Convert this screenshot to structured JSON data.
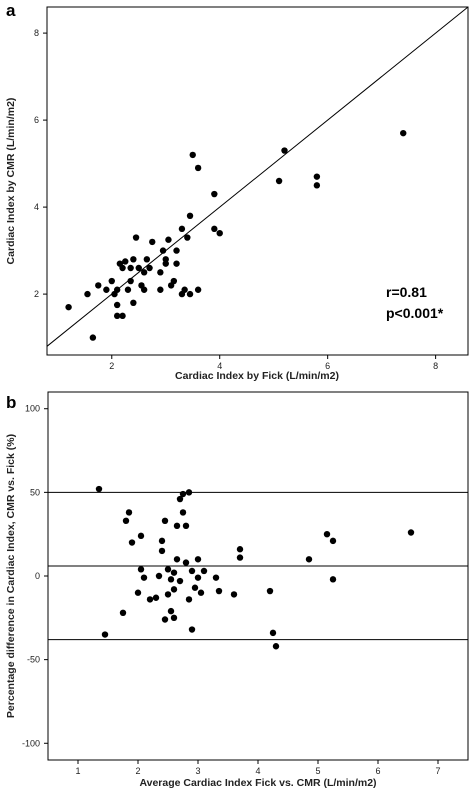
{
  "chart_data": [
    {
      "type": "scatter",
      "panel_label": "a",
      "xlabel": "Cardiac Index by Fick (L/min/m2)",
      "ylabel": "Cardiac Index by CMR (L/min/m2)",
      "xlim": [
        0.8,
        8.6
      ],
      "ylim": [
        0.6,
        8.6
      ],
      "xticks": [
        "2",
        "4",
        "6",
        "8"
      ],
      "yticks": [
        "2",
        "4",
        "6",
        "8"
      ],
      "annotations": [
        "r=0.81",
        "p<0.001*"
      ],
      "identity_line": true,
      "points": [
        {
          "x": 1.2,
          "y": 1.7
        },
        {
          "x": 1.55,
          "y": 2.0
        },
        {
          "x": 1.65,
          "y": 1.0
        },
        {
          "x": 1.75,
          "y": 2.2
        },
        {
          "x": 1.9,
          "y": 2.1
        },
        {
          "x": 2.0,
          "y": 2.3
        },
        {
          "x": 2.05,
          "y": 2.0
        },
        {
          "x": 2.1,
          "y": 1.5
        },
        {
          "x": 2.1,
          "y": 1.75
        },
        {
          "x": 2.1,
          "y": 2.1
        },
        {
          "x": 2.15,
          "y": 2.7
        },
        {
          "x": 2.2,
          "y": 1.5
        },
        {
          "x": 2.25,
          "y": 2.75
        },
        {
          "x": 2.2,
          "y": 2.6
        },
        {
          "x": 2.35,
          "y": 2.3
        },
        {
          "x": 2.3,
          "y": 2.1
        },
        {
          "x": 2.35,
          "y": 2.6
        },
        {
          "x": 2.4,
          "y": 2.8
        },
        {
          "x": 2.4,
          "y": 1.8
        },
        {
          "x": 2.45,
          "y": 3.3
        },
        {
          "x": 2.5,
          "y": 2.6
        },
        {
          "x": 2.55,
          "y": 2.2
        },
        {
          "x": 2.6,
          "y": 2.5
        },
        {
          "x": 2.6,
          "y": 2.1
        },
        {
          "x": 2.65,
          "y": 2.8
        },
        {
          "x": 2.7,
          "y": 2.6
        },
        {
          "x": 2.75,
          "y": 3.2
        },
        {
          "x": 2.9,
          "y": 2.5
        },
        {
          "x": 2.9,
          "y": 2.1
        },
        {
          "x": 2.95,
          "y": 3.0
        },
        {
          "x": 3.0,
          "y": 2.7
        },
        {
          "x": 3.0,
          "y": 2.8
        },
        {
          "x": 3.05,
          "y": 3.25
        },
        {
          "x": 3.1,
          "y": 2.2
        },
        {
          "x": 3.15,
          "y": 2.3
        },
        {
          "x": 3.2,
          "y": 2.7
        },
        {
          "x": 3.2,
          "y": 3.0
        },
        {
          "x": 3.3,
          "y": 3.5
        },
        {
          "x": 3.35,
          "y": 2.1
        },
        {
          "x": 3.4,
          "y": 3.3
        },
        {
          "x": 3.3,
          "y": 2.0
        },
        {
          "x": 3.45,
          "y": 2.0
        },
        {
          "x": 3.45,
          "y": 3.8
        },
        {
          "x": 3.5,
          "y": 5.2
        },
        {
          "x": 3.6,
          "y": 4.9
        },
        {
          "x": 3.6,
          "y": 2.1
        },
        {
          "x": 3.9,
          "y": 4.3
        },
        {
          "x": 3.9,
          "y": 3.5
        },
        {
          "x": 4.0,
          "y": 3.4
        },
        {
          "x": 5.1,
          "y": 4.6
        },
        {
          "x": 5.2,
          "y": 5.3
        },
        {
          "x": 5.8,
          "y": 4.7
        },
        {
          "x": 5.8,
          "y": 4.5
        },
        {
          "x": 7.4,
          "y": 5.7
        }
      ]
    },
    {
      "type": "scatter",
      "panel_label": "b",
      "xlabel": "Average Cardiac Index Fick vs. CMR (L/min/m2)",
      "ylabel": "Percentage difference in Cardiac Index, CMR vs. Fick (%)",
      "xlim": [
        0.5,
        7.5
      ],
      "ylim": [
        -110,
        110
      ],
      "xticks": [
        "1",
        "2",
        "3",
        "4",
        "5",
        "6",
        "7"
      ],
      "yticks": [
        "-100",
        "-50",
        "0",
        "50",
        "100"
      ],
      "reference_lines": [
        50,
        6,
        -38
      ],
      "points": [
        {
          "x": 1.35,
          "y": 52
        },
        {
          "x": 1.45,
          "y": -35
        },
        {
          "x": 1.75,
          "y": -22
        },
        {
          "x": 1.8,
          "y": 33
        },
        {
          "x": 1.85,
          "y": 38
        },
        {
          "x": 1.9,
          "y": 20
        },
        {
          "x": 2.0,
          "y": -10
        },
        {
          "x": 2.05,
          "y": 24
        },
        {
          "x": 2.05,
          "y": 4
        },
        {
          "x": 2.1,
          "y": -1
        },
        {
          "x": 2.2,
          "y": -14
        },
        {
          "x": 2.3,
          "y": -13
        },
        {
          "x": 2.35,
          "y": 0
        },
        {
          "x": 2.4,
          "y": 15
        },
        {
          "x": 2.4,
          "y": 21
        },
        {
          "x": 2.45,
          "y": -26
        },
        {
          "x": 2.45,
          "y": 33
        },
        {
          "x": 2.5,
          "y": 4
        },
        {
          "x": 2.5,
          "y": -11
        },
        {
          "x": 2.55,
          "y": -2
        },
        {
          "x": 2.55,
          "y": -21
        },
        {
          "x": 2.6,
          "y": -25
        },
        {
          "x": 2.6,
          "y": -8
        },
        {
          "x": 2.6,
          "y": 2
        },
        {
          "x": 2.65,
          "y": 30
        },
        {
          "x": 2.65,
          "y": 10
        },
        {
          "x": 2.7,
          "y": 46
        },
        {
          "x": 2.7,
          "y": -3
        },
        {
          "x": 2.75,
          "y": 38
        },
        {
          "x": 2.75,
          "y": 49
        },
        {
          "x": 2.8,
          "y": 30
        },
        {
          "x": 2.8,
          "y": 8
        },
        {
          "x": 2.85,
          "y": -14
        },
        {
          "x": 2.85,
          "y": 50
        },
        {
          "x": 2.9,
          "y": -32
        },
        {
          "x": 2.9,
          "y": 3
        },
        {
          "x": 2.95,
          "y": -7
        },
        {
          "x": 3.0,
          "y": -1
        },
        {
          "x": 3.0,
          "y": 10
        },
        {
          "x": 3.05,
          "y": -10
        },
        {
          "x": 3.1,
          "y": 3
        },
        {
          "x": 3.3,
          "y": -1
        },
        {
          "x": 3.35,
          "y": -9
        },
        {
          "x": 3.6,
          "y": -11
        },
        {
          "x": 3.7,
          "y": 16
        },
        {
          "x": 3.7,
          "y": 11
        },
        {
          "x": 4.2,
          "y": -9
        },
        {
          "x": 4.25,
          "y": -34
        },
        {
          "x": 4.3,
          "y": -42
        },
        {
          "x": 4.85,
          "y": 10
        },
        {
          "x": 5.15,
          "y": 25
        },
        {
          "x": 5.25,
          "y": 21
        },
        {
          "x": 5.25,
          "y": -2
        },
        {
          "x": 6.55,
          "y": 26
        }
      ]
    }
  ]
}
